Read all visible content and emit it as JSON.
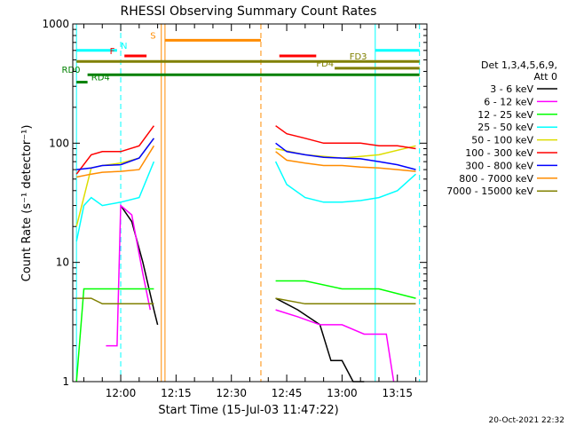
{
  "chart_data": {
    "type": "line",
    "title": "RHESSI Observing Summary Count Rates",
    "xlabel": "Start Time (15-Jul-03 11:47:22)",
    "ylabel": "Count Rate (s⁻¹ detector⁻¹)",
    "yscale": "log",
    "ylim": [
      1,
      1000
    ],
    "xlim": [
      "11:47",
      "13:23"
    ],
    "x_ticks": [
      "12:00",
      "12:15",
      "12:30",
      "12:45",
      "13:00",
      "13:15"
    ],
    "y_ticks": [
      "1",
      "10",
      "100",
      "1000"
    ],
    "timestamp": "20-Oct-2021 22:32",
    "legend": {
      "header": [
        "Det 1,3,4,5,6,9,",
        "Att 0"
      ],
      "placement": "right"
    },
    "series": [
      {
        "name": "3 - 6 keV",
        "color": "#000000",
        "segments": [
          {
            "x": [
              "12:00",
              "12:03",
              "12:06",
              "12:09",
              "12:10"
            ],
            "y": [
              30,
              22,
              10,
              4,
              3
            ]
          },
          {
            "x": [
              "12:42",
              "12:48",
              "12:54",
              "12:57",
              "13:00",
              "13:03",
              "13:06"
            ],
            "y": [
              5,
              4,
              3,
              1.5,
              1.5,
              1,
              1
            ]
          }
        ]
      },
      {
        "name": "6 - 12 keV",
        "color": "#ff00ff",
        "segments": [
          {
            "x": [
              "11:56",
              "11:59",
              "12:00",
              "12:03",
              "12:06",
              "12:08"
            ],
            "y": [
              2,
              2,
              30,
              25,
              8,
              4
            ]
          },
          {
            "x": [
              "12:42",
              "12:48",
              "12:54",
              "13:00",
              "13:06",
              "13:12",
              "13:14"
            ],
            "y": [
              4,
              3.5,
              3,
              3,
              2.5,
              2.5,
              1
            ]
          }
        ]
      },
      {
        "name": "12 - 25 keV",
        "color": "#00ff00",
        "segments": [
          {
            "x": [
              "11:48",
              "11:50",
              "11:55",
              "12:00",
              "12:05",
              "12:09"
            ],
            "y": [
              1,
              6,
              6,
              6,
              6,
              6
            ]
          },
          {
            "x": [
              "12:42",
              "12:50",
              "13:00",
              "13:10",
              "13:20"
            ],
            "y": [
              7,
              7,
              6,
              6,
              5
            ]
          }
        ]
      },
      {
        "name": "25 - 50 keV",
        "color": "#00ffff",
        "segments": [
          {
            "x": [
              "11:48",
              "11:50",
              "11:52",
              "11:55",
              "12:00",
              "12:05",
              "12:09"
            ],
            "y": [
              15,
              30,
              35,
              30,
              32,
              35,
              70
            ]
          },
          {
            "x": [
              "12:42",
              "12:45",
              "12:50",
              "12:55",
              "13:00",
              "13:05",
              "13:10",
              "13:15",
              "13:20"
            ],
            "y": [
              70,
              45,
              35,
              32,
              32,
              33,
              35,
              40,
              55
            ]
          }
        ]
      },
      {
        "name": "50 - 100 keV",
        "color": "#dddd00",
        "segments": [
          {
            "x": [
              "11:48",
              "11:52",
              "11:55",
              "12:00",
              "12:05",
              "12:09"
            ],
            "y": [
              20,
              62,
              65,
              68,
              75,
              110
            ]
          },
          {
            "x": [
              "12:42",
              "12:50",
              "13:00",
              "13:10",
              "13:20"
            ],
            "y": [
              90,
              80,
              75,
              80,
              95
            ]
          }
        ]
      },
      {
        "name": "100 - 300 keV",
        "color": "#ff0000",
        "segments": [
          {
            "x": [
              "11:48",
              "11:52",
              "11:55",
              "12:00",
              "12:05",
              "12:09"
            ],
            "y": [
              55,
              80,
              85,
              85,
              95,
              140
            ]
          },
          {
            "x": [
              "12:42",
              "12:45",
              "12:50",
              "12:55",
              "13:00",
              "13:05",
              "13:10",
              "13:15",
              "13:20"
            ],
            "y": [
              140,
              120,
              110,
              100,
              100,
              100,
              95,
              95,
              90
            ]
          }
        ]
      },
      {
        "name": "300 - 800 keV",
        "color": "#0000ff",
        "segments": [
          {
            "x": [
              "11:48",
              "11:52",
              "11:55",
              "12:00",
              "12:05",
              "12:09"
            ],
            "y": [
              60,
              62,
              65,
              66,
              75,
              110
            ]
          },
          {
            "x": [
              "12:42",
              "12:45",
              "12:50",
              "12:55",
              "13:00",
              "13:05",
              "13:10",
              "13:15",
              "13:20"
            ],
            "y": [
              100,
              85,
              80,
              76,
              75,
              74,
              70,
              66,
              60
            ]
          }
        ]
      },
      {
        "name": "800 - 7000 keV",
        "color": "#ff8c00",
        "segments": [
          {
            "x": [
              "11:48",
              "11:52",
              "11:55",
              "12:00",
              "12:05",
              "12:09"
            ],
            "y": [
              52,
              55,
              57,
              58,
              60,
              95
            ]
          },
          {
            "x": [
              "12:42",
              "12:45",
              "12:50",
              "12:55",
              "13:00",
              "13:05",
              "13:10",
              "13:15",
              "13:20"
            ],
            "y": [
              85,
              72,
              68,
              65,
              65,
              63,
              62,
              60,
              58
            ]
          }
        ]
      },
      {
        "name": "7000 - 15000 keV",
        "color": "#808000",
        "segments": [
          {
            "x": [
              "11:48",
              "11:52",
              "11:55",
              "12:00",
              "12:05",
              "12:09"
            ],
            "y": [
              5,
              5,
              4.5,
              4.5,
              4.5,
              4.5
            ]
          },
          {
            "x": [
              "12:42",
              "12:50",
              "13:00",
              "13:10",
              "13:20"
            ],
            "y": [
              5,
              4.5,
              4.5,
              4.5,
              4.5
            ]
          }
        ]
      }
    ],
    "vertical_lines": [
      {
        "x": "11:48",
        "color": "#00ffff",
        "style": "solid"
      },
      {
        "x": "12:00",
        "color": "#00ffff",
        "style": "dashed"
      },
      {
        "x": "12:11",
        "color": "#ff8c00",
        "style": "solid"
      },
      {
        "x": "12:12",
        "color": "#ff8c00",
        "style": "solid"
      },
      {
        "x": "12:38",
        "color": "#ff8c00",
        "style": "dashed"
      },
      {
        "x": "13:09",
        "color": "#00ffff",
        "style": "solid"
      },
      {
        "x": "13:21",
        "color": "#00ffff",
        "style": "dashed"
      }
    ],
    "flag_bars": [
      {
        "label": "N",
        "color": "#00ffff",
        "y": 600,
        "ranges": [
          [
            "11:48",
            "11:59"
          ],
          [
            "13:09",
            "13:21"
          ]
        ],
        "label_at": "12:00"
      },
      {
        "label": "F",
        "color": "#ff0000",
        "y": 540,
        "ranges": [
          [
            "12:01",
            "12:07"
          ],
          [
            "12:43",
            "12:53"
          ]
        ],
        "label_at": "11:57"
      },
      {
        "label": "S",
        "color": "#ff8c00",
        "y": 730,
        "ranges": [
          [
            "12:12",
            "12:38"
          ]
        ],
        "label_at": "12:08"
      },
      {
        "label": "FD3",
        "color": "#808000",
        "y": 485,
        "ranges": [
          [
            "11:48",
            "13:21"
          ]
        ],
        "label_at": "13:02"
      },
      {
        "label": "FD4",
        "color": "#808000",
        "y": 425,
        "ranges": [
          [
            "12:58",
            "13:21"
          ]
        ],
        "label_at": "12:53"
      },
      {
        "label": "RD0",
        "color": "#008000",
        "y": 375,
        "ranges": [
          [
            "11:51",
            "13:21"
          ]
        ],
        "label_at": "11:44"
      },
      {
        "label": "RD4",
        "color": "#008000",
        "y": 325,
        "ranges": [
          [
            "11:48",
            "11:51"
          ]
        ],
        "label_at": "11:52"
      }
    ]
  }
}
